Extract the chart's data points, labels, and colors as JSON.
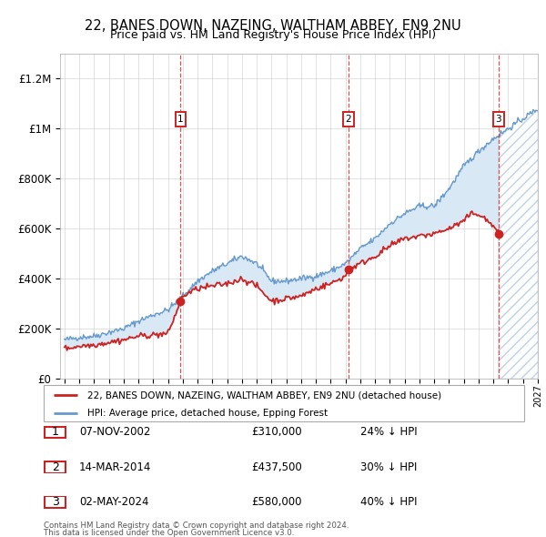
{
  "title": "22, BANES DOWN, NAZEING, WALTHAM ABBEY, EN9 2NU",
  "subtitle": "Price paid vs. HM Land Registry's House Price Index (HPI)",
  "ylim": [
    0,
    1300000
  ],
  "yticks": [
    0,
    200000,
    400000,
    600000,
    800000,
    1000000,
    1200000
  ],
  "ytick_labels": [
    "£0",
    "£200K",
    "£400K",
    "£600K",
    "£800K",
    "£1M",
    "£1.2M"
  ],
  "x_start_year": 1995,
  "x_end_year": 2027,
  "sale_dates": [
    "07-NOV-2002",
    "14-MAR-2014",
    "02-MAY-2024"
  ],
  "sale_prices": [
    310000,
    437500,
    580000
  ],
  "sale_years": [
    2002.85,
    2014.2,
    2024.34
  ],
  "sale_labels": [
    "1",
    "2",
    "3"
  ],
  "sale_pct": [
    "24% ↓ HPI",
    "30% ↓ HPI",
    "40% ↓ HPI"
  ],
  "line_color_red": "#cc2222",
  "line_color_blue": "#6699cc",
  "fill_color": "#d8e8f5",
  "legend_label_red": "22, BANES DOWN, NAZEING, WALTHAM ABBEY, EN9 2NU (detached house)",
  "legend_label_blue": "HPI: Average price, detached house, Epping Forest",
  "footer1": "Contains HM Land Registry data © Crown copyright and database right 2024.",
  "footer2": "This data is licensed under the Open Government Licence v3.0.",
  "row_prices": [
    "£310,000",
    "£437,500",
    "£580,000"
  ]
}
